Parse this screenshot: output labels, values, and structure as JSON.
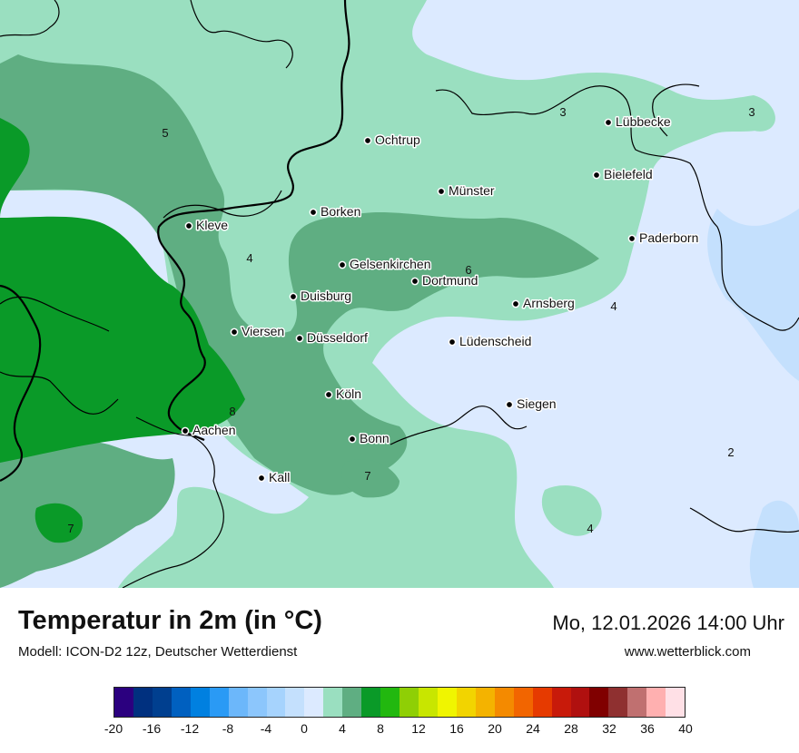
{
  "map": {
    "cities": [
      {
        "name": "Ochtrup"
      },
      {
        "name": "Lübbecke"
      },
      {
        "name": "Bielefeld"
      },
      {
        "name": "Münster"
      },
      {
        "name": "Borken"
      },
      {
        "name": "Kleve"
      },
      {
        "name": "Paderborn"
      },
      {
        "name": "Gelsenkirchen"
      },
      {
        "name": "Dortmund"
      },
      {
        "name": "Duisburg"
      },
      {
        "name": "Arnsberg"
      },
      {
        "name": "Viersen"
      },
      {
        "name": "Düsseldorf"
      },
      {
        "name": "Lüdenscheid"
      },
      {
        "name": "Köln"
      },
      {
        "name": "Siegen"
      },
      {
        "name": "Aachen"
      },
      {
        "name": "Bonn"
      },
      {
        "name": "Kall"
      }
    ],
    "isotherm_labels": [
      "5",
      "3",
      "3",
      "4",
      "6",
      "4",
      "8",
      "7",
      "2",
      "7",
      "4"
    ]
  },
  "footer": {
    "title": "Temperatur in 2m (in °C)",
    "model": "Modell: ICON-D2 12z, Deutscher Wetterdienst",
    "datetime": "Mo, 12.01.2026 14:00 Uhr",
    "website": "www.wetterblick.com"
  },
  "legend": {
    "colors": [
      "#2b007f",
      "#00307f",
      "#003f8f",
      "#0060c0",
      "#0080e0",
      "#2a9af5",
      "#6cb7fa",
      "#8cc6fc",
      "#a6d3fd",
      "#c4e0fd",
      "#dceaff",
      "#9adfc0",
      "#5fae82",
      "#0a9a28",
      "#22b80f",
      "#8fcf05",
      "#c8e600",
      "#f0f500",
      "#f2d400",
      "#f4b300",
      "#f48a00",
      "#f26500",
      "#e63a00",
      "#c81a0a",
      "#b0100f",
      "#800000",
      "#8f3030",
      "#c07070",
      "#ffb0b0",
      "#ffe0e6"
    ],
    "ticks": [
      "-20",
      "-16",
      "-12",
      "-8",
      "-4",
      "0",
      "4",
      "8",
      "12",
      "16",
      "20",
      "24",
      "28",
      "32",
      "36",
      "40"
    ],
    "palette": {
      "pale_blue": "#dceaff",
      "light_green": "#9adfc0",
      "mid_green": "#5fae82",
      "dark_green": "#0a9a28",
      "light_blue": "#c4e0fd"
    }
  }
}
